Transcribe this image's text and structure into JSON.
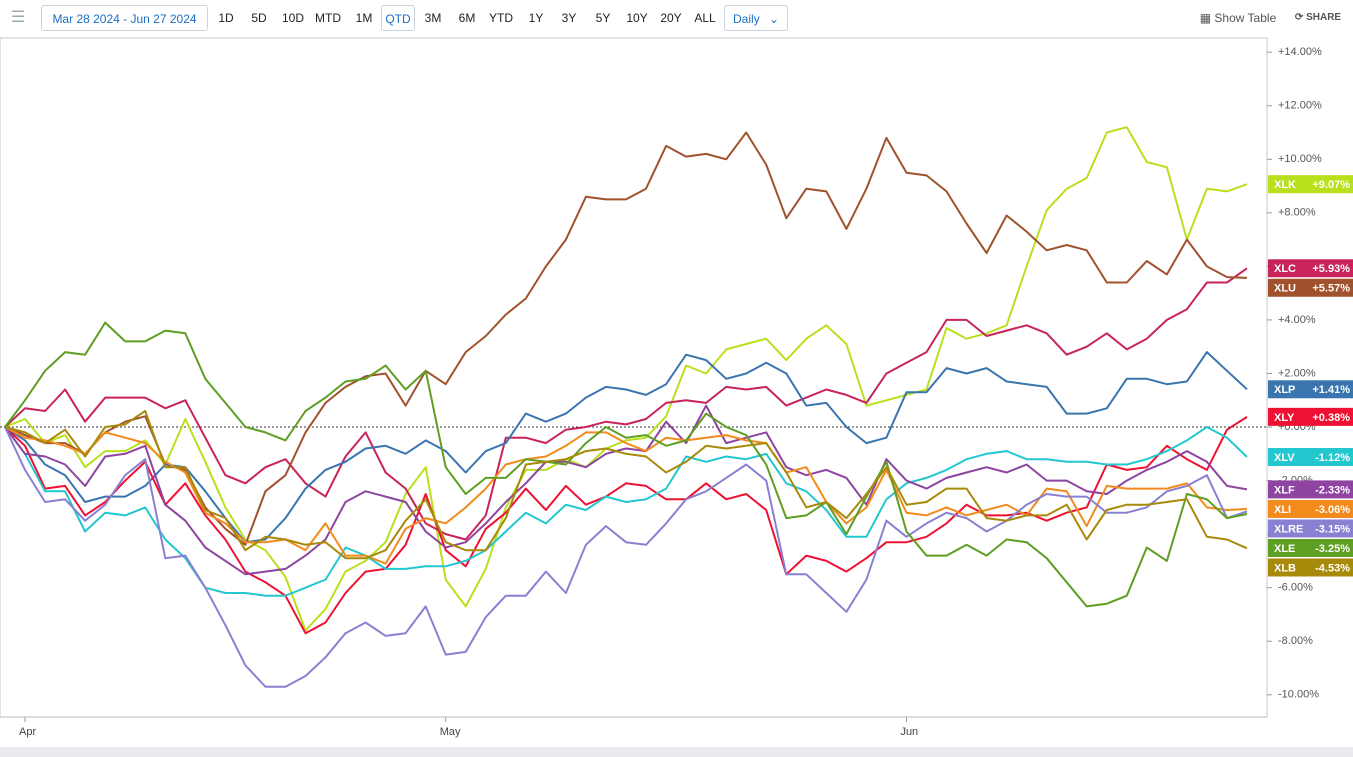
{
  "toolbar": {
    "date_range": "Mar 28 2024 - Jun 27 2024",
    "ranges": [
      "1D",
      "5D",
      "10D",
      "MTD",
      "1M",
      "QTD",
      "3M",
      "6M",
      "YTD",
      "1Y",
      "3Y",
      "5Y",
      "10Y",
      "20Y",
      "ALL"
    ],
    "active_range": "QTD",
    "interval": "Daily",
    "show_table": "Show Table",
    "share": "SHARE"
  },
  "chart_data": {
    "type": "line",
    "categories": [
      null,
      "Apr",
      null,
      null,
      null,
      null,
      null,
      null,
      null,
      null,
      null,
      null,
      null,
      null,
      null,
      null,
      null,
      null,
      null,
      null,
      null,
      null,
      "May",
      null,
      null,
      null,
      null,
      null,
      null,
      null,
      null,
      null,
      null,
      null,
      null,
      null,
      null,
      null,
      null,
      null,
      null,
      null,
      null,
      null,
      null,
      "Jun",
      null,
      null,
      null,
      null,
      null,
      null,
      null,
      null,
      null,
      null,
      null,
      null,
      null,
      null,
      null,
      null,
      null
    ],
    "ylim": [
      -10.83,
      14.53
    ],
    "yticks": [
      {
        "value": 14,
        "label": "+14.00%"
      },
      {
        "value": 12,
        "label": "+12.00%"
      },
      {
        "value": 10,
        "label": "+10.00%"
      },
      {
        "value": 8,
        "label": "+8.00%"
      },
      {
        "value": 6,
        "label": "+6.00%"
      },
      {
        "value": 4,
        "label": "+4.00%"
      },
      {
        "value": 2,
        "label": "+2.00%"
      },
      {
        "value": 0,
        "label": "+0.00%"
      },
      {
        "value": -2,
        "label": "-2.00%"
      },
      {
        "value": -4,
        "label": "-4.00%"
      },
      {
        "value": -6,
        "label": "-6.00%"
      },
      {
        "value": -8,
        "label": "-8.00%"
      },
      {
        "value": -10,
        "label": "-10.00%"
      }
    ],
    "zero_line": true,
    "series": [
      {
        "name": "XLK",
        "color": "#b8e01c",
        "last_value_label": "+9.07%",
        "values": [
          0,
          0.3,
          -0.6,
          -0.3,
          -1.5,
          -0.9,
          -0.9,
          -0.5,
          -1.4,
          0.3,
          -1.3,
          -3.0,
          -4.2,
          -4.6,
          -5.6,
          -7.6,
          -6.8,
          -5.4,
          -5.0,
          -4.3,
          -2.5,
          -1.5,
          -5.7,
          -6.7,
          -5.3,
          -3.0,
          -1.6,
          -1.6,
          -1.2,
          -1.5,
          -0.8,
          -0.5,
          -0.4,
          0.4,
          2.3,
          2.0,
          2.9,
          3.1,
          3.3,
          2.5,
          3.3,
          3.8,
          3.1,
          0.8,
          1.0,
          1.2,
          1.4,
          3.7,
          3.3,
          3.5,
          3.8,
          6.0,
          8.1,
          8.9,
          9.3,
          11.0,
          11.2,
          9.9,
          9.7,
          7.0,
          8.9,
          8.8,
          9.07
        ]
      },
      {
        "name": "XLC",
        "color": "#c8235a",
        "last_value_label": "+5.93%",
        "values": [
          0,
          0.7,
          0.6,
          1.4,
          0.2,
          1.1,
          1.1,
          1.1,
          0.7,
          1.0,
          -0.4,
          -1.8,
          -2.1,
          -1.5,
          -1.2,
          -2.1,
          -2.6,
          -1.1,
          -0.2,
          -1.7,
          -2.3,
          -3.6,
          -4.0,
          -4.2,
          -3.3,
          -0.4,
          -0.4,
          -0.6,
          -0.1,
          0,
          0.2,
          0.1,
          0.3,
          0.9,
          1.0,
          0.9,
          1.5,
          1.4,
          1.5,
          0.8,
          1.1,
          1.4,
          1.2,
          0.9,
          2.0,
          2.4,
          2.8,
          4.0,
          4.0,
          3.4,
          3.6,
          3.8,
          3.5,
          2.7,
          3.0,
          3.5,
          2.9,
          3.3,
          4.0,
          4.4,
          5.4,
          5.4,
          5.93
        ]
      },
      {
        "name": "XLU",
        "color": "#a0522d",
        "last_value_label": "+5.57%",
        "values": [
          0,
          -0.3,
          -0.6,
          -0.6,
          -1.0,
          -0.2,
          0.2,
          0.4,
          -1.4,
          -1.6,
          -3.0,
          -3.8,
          -4.4,
          -2.4,
          -1.8,
          -0.2,
          0.9,
          1.5,
          1.9,
          2.0,
          0.8,
          2.1,
          1.6,
          2.8,
          3.4,
          4.2,
          4.8,
          6.0,
          7.0,
          8.6,
          8.5,
          8.5,
          8.9,
          10.5,
          10.1,
          10.2,
          10.0,
          11.0,
          9.8,
          7.8,
          8.9,
          8.8,
          7.4,
          8.9,
          10.8,
          9.5,
          9.4,
          8.8,
          7.6,
          6.5,
          7.9,
          7.3,
          6.6,
          6.8,
          6.6,
          5.4,
          5.4,
          6.2,
          5.7,
          7.0,
          6.0,
          5.6,
          5.57
        ]
      },
      {
        "name": "XLP",
        "color": "#3a75b0",
        "last_value_label": "+1.41%",
        "values": [
          0,
          -0.5,
          -1.4,
          -1.8,
          -2.8,
          -2.6,
          -2.6,
          -2.2,
          -1.4,
          -1.5,
          -2.4,
          -3.4,
          -4.3,
          -4.2,
          -3.4,
          -2.3,
          -1.6,
          -1.3,
          -0.8,
          -0.7,
          -1.0,
          -0.5,
          -0.9,
          -1.7,
          -0.9,
          -0.6,
          0.5,
          0.2,
          0.5,
          1.1,
          1.5,
          1.4,
          1.2,
          1.6,
          2.7,
          2.5,
          1.8,
          2.0,
          2.4,
          2.0,
          0.8,
          0.9,
          0.0,
          -0.6,
          -0.4,
          1.3,
          1.3,
          2.2,
          2.0,
          2.2,
          1.7,
          1.6,
          1.5,
          0.5,
          0.5,
          0.7,
          1.8,
          1.8,
          1.6,
          1.7,
          2.8,
          2.1,
          1.41
        ]
      },
      {
        "name": "XLY",
        "color": "#ee1133",
        "last_value_label": "+0.38%",
        "values": [
          0,
          -0.7,
          -2.3,
          -2.2,
          -3.3,
          -2.8,
          -2.0,
          -1.3,
          -2.9,
          -2.1,
          -3.3,
          -4.2,
          -5.4,
          -5.8,
          -6.3,
          -7.7,
          -7.3,
          -6.2,
          -5.4,
          -5.3,
          -4.4,
          -2.5,
          -4.6,
          -5.2,
          -3.8,
          -3.2,
          -2.3,
          -3.1,
          -2.2,
          -2.9,
          -2.6,
          -2.1,
          -2.2,
          -2.7,
          -2.7,
          -2.1,
          -2.7,
          -2.5,
          -3.1,
          -5.5,
          -4.8,
          -5.0,
          -5.4,
          -4.9,
          -4.3,
          -4.3,
          -4.1,
          -3.6,
          -2.9,
          -3.3,
          -3.3,
          -3.2,
          -3.5,
          -3.2,
          -3.0,
          -1.4,
          -1.6,
          -1.5,
          -0.7,
          -1.2,
          -1.6,
          -0.1,
          0.38
        ]
      },
      {
        "name": "XLV",
        "color": "#22c7d0",
        "last_value_label": "-1.12%",
        "values": [
          0,
          -1.0,
          -2.4,
          -2.4,
          -3.9,
          -3.2,
          -3.3,
          -3.0,
          -4.2,
          -4.9,
          -6.0,
          -6.2,
          -6.2,
          -6.3,
          -6.3,
          -6.0,
          -5.7,
          -4.5,
          -4.8,
          -5.3,
          -5.3,
          -5.2,
          -5.2,
          -5.0,
          -4.6,
          -3.9,
          -3.2,
          -3.6,
          -2.9,
          -3.1,
          -2.6,
          -2.8,
          -2.7,
          -2.3,
          -1.1,
          -1.3,
          -1.1,
          -1.2,
          -1.0,
          -2.1,
          -2.4,
          -3.1,
          -4.1,
          -4.1,
          -2.7,
          -2.1,
          -1.9,
          -1.6,
          -1.2,
          -1.0,
          -0.9,
          -1.2,
          -1.2,
          -1.3,
          -1.3,
          -1.4,
          -1.4,
          -1.2,
          -0.9,
          -0.5,
          0.0,
          -0.4,
          -1.12
        ]
      },
      {
        "name": "XLF",
        "color": "#8e44a0",
        "last_value_label": "-2.33%",
        "values": [
          0,
          -1.0,
          -1.1,
          -1.4,
          -2.2,
          -1.1,
          -1.0,
          -0.7,
          -2.9,
          -3.5,
          -4.5,
          -5.0,
          -5.5,
          -5.4,
          -5.3,
          -4.8,
          -4.2,
          -2.8,
          -2.4,
          -2.6,
          -2.8,
          -3.9,
          -4.5,
          -4.3,
          -3.6,
          -2.8,
          -2.1,
          -1.3,
          -1.3,
          -1.5,
          -1.0,
          -0.8,
          -0.9,
          0.2,
          -0.6,
          0.8,
          -0.6,
          -0.4,
          -0.2,
          -1.5,
          -1.8,
          -1.6,
          -1.9,
          -2.9,
          -1.2,
          -2.0,
          -2.3,
          -1.9,
          -1.7,
          -1.5,
          -1.7,
          -1.4,
          -2.0,
          -2.0,
          -2.4,
          -2.5,
          -2.0,
          -1.6,
          -1.3,
          -0.9,
          -1.3,
          -2.2,
          -2.33
        ]
      },
      {
        "name": "XLI",
        "color": "#f28a1c",
        "last_value_label": "-3.06%",
        "values": [
          0,
          -0.4,
          -0.5,
          -0.7,
          -1.0,
          -0.2,
          -0.4,
          -0.6,
          -1.3,
          -1.7,
          -3.2,
          -3.6,
          -4.3,
          -4.3,
          -4.2,
          -4.6,
          -3.6,
          -4.8,
          -4.8,
          -5.1,
          -3.8,
          -3.4,
          -3.6,
          -3.0,
          -2.3,
          -1.4,
          -1.2,
          -1.1,
          -0.7,
          -0.2,
          -0.2,
          -0.6,
          -0.9,
          -0.4,
          -0.5,
          -0.4,
          -0.3,
          -0.5,
          -0.6,
          -1.7,
          -1.5,
          -2.8,
          -3.6,
          -3.0,
          -1.6,
          -3.2,
          -3.3,
          -3.0,
          -3.3,
          -3.1,
          -2.9,
          -3.3,
          -2.3,
          -2.4,
          -3.7,
          -2.2,
          -2.3,
          -2.3,
          -2.3,
          -2.1,
          -3.0,
          -3.1,
          -3.06
        ]
      },
      {
        "name": "XLRE",
        "color": "#8a80d2",
        "last_value_label": "-3.15%",
        "values": [
          0,
          -1.6,
          -2.8,
          -2.7,
          -3.5,
          -2.9,
          -1.8,
          -1.2,
          -4.9,
          -4.8,
          -6.0,
          -7.4,
          -8.9,
          -9.7,
          -9.7,
          -9.3,
          -8.6,
          -7.7,
          -7.3,
          -7.8,
          -7.7,
          -6.7,
          -8.5,
          -8.4,
          -7.1,
          -6.3,
          -6.3,
          -5.4,
          -6.2,
          -4.4,
          -3.7,
          -4.3,
          -4.4,
          -3.6,
          -2.7,
          -2.4,
          -1.9,
          -1.4,
          -2.0,
          -5.5,
          -5.5,
          -6.2,
          -6.9,
          -5.7,
          -3.5,
          -4.1,
          -3.6,
          -3.2,
          -3.4,
          -3.9,
          -3.5,
          -2.9,
          -2.5,
          -2.6,
          -2.6,
          -3.2,
          -3.2,
          -3.0,
          -2.4,
          -2.2,
          -1.8,
          -3.4,
          -3.15
        ]
      },
      {
        "name": "XLE",
        "color": "#5e9e22",
        "last_value_label": "-3.25%",
        "values": [
          0,
          1.0,
          2.1,
          2.8,
          2.7,
          3.9,
          3.2,
          3.2,
          3.6,
          3.5,
          1.8,
          0.9,
          0.0,
          -0.2,
          -0.5,
          0.6,
          1.1,
          1.7,
          1.8,
          2.3,
          1.4,
          2.1,
          -1.5,
          -2.5,
          -1.9,
          -1.9,
          -1.2,
          -1.3,
          -1.4,
          -0.6,
          0.0,
          -0.4,
          -0.3,
          -0.7,
          -0.5,
          0.5,
          0.0,
          -0.3,
          -1.4,
          -3.4,
          -3.3,
          -2.8,
          -4.0,
          -2.6,
          -1.3,
          -3.9,
          -4.8,
          -4.8,
          -4.4,
          -4.8,
          -4.2,
          -4.3,
          -4.9,
          -5.8,
          -6.7,
          -6.6,
          -6.3,
          -4.5,
          -5.0,
          -2.5,
          -2.7,
          -3.4,
          -3.25
        ]
      },
      {
        "name": "XLB",
        "color": "#a88a0a",
        "last_value_label": "-4.53%",
        "values": [
          0,
          -0.2,
          -0.6,
          -0.1,
          -1.1,
          0.0,
          0.1,
          0.6,
          -1.5,
          -1.5,
          -3.1,
          -3.4,
          -4.6,
          -4.1,
          -4.2,
          -4.4,
          -4.3,
          -4.9,
          -4.9,
          -4.6,
          -3.5,
          -2.7,
          -4.3,
          -4.6,
          -4.6,
          -3.4,
          -1.4,
          -1.3,
          -1.2,
          -0.9,
          -0.8,
          -1.0,
          -1.1,
          -1.7,
          -1.3,
          -0.7,
          -0.8,
          -0.7,
          -0.6,
          -1.7,
          -3.0,
          -2.8,
          -3.4,
          -2.5,
          -1.5,
          -2.9,
          -2.8,
          -2.3,
          -2.3,
          -3.4,
          -3.5,
          -3.3,
          -3.3,
          -2.9,
          -4.2,
          -3.1,
          -2.9,
          -2.9,
          -2.8,
          -2.7,
          -4.1,
          -4.2,
          -4.53
        ]
      }
    ]
  }
}
